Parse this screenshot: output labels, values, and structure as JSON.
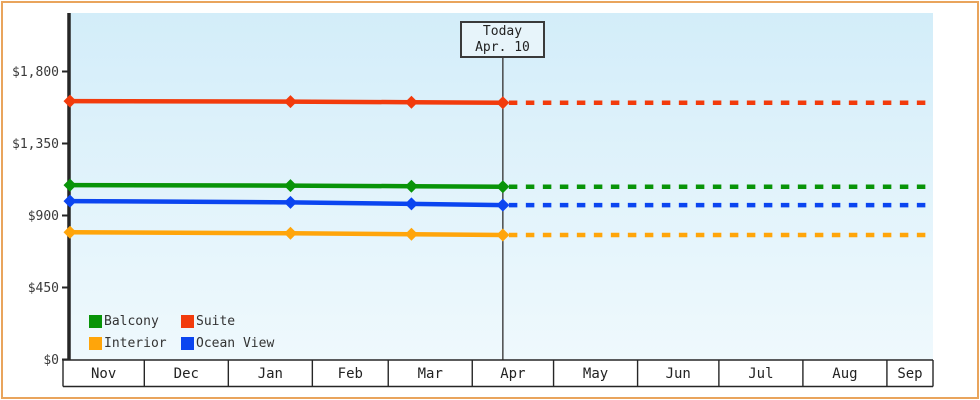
{
  "page": {
    "border_color": "#e9a45c",
    "background_color": "#ffffff",
    "plot_gradient_top": "#d3edf9",
    "plot_gradient_bottom": "#eff9fd"
  },
  "legend": {
    "items": [
      {
        "label": "Balcony",
        "color": "#089408"
      },
      {
        "label": "Suite",
        "color": "#f23b0c"
      },
      {
        "label": "Interior",
        "color": "#ffa50a"
      },
      {
        "label": "Ocean View",
        "color": "#0b45f0"
      }
    ]
  },
  "chart_data": {
    "type": "line",
    "title": "",
    "x_axis": {
      "month_labels": [
        "Nov",
        "Dec",
        "Jan",
        "Feb",
        "Mar",
        "Apr",
        "May",
        "Jun",
        "Jul",
        "Aug",
        "Sep"
      ],
      "days_per_month": [
        30,
        31,
        31,
        28,
        31,
        30,
        31,
        30,
        31,
        31,
        17
      ]
    },
    "y_axis": {
      "tick_labels": [
        "$1,800",
        "$1,350",
        "$900",
        "$450",
        "$0"
      ],
      "tick_values": [
        1800,
        1350,
        900,
        450,
        0
      ],
      "range": [
        0,
        2160
      ]
    },
    "today": {
      "line1": "Today",
      "line2": "Apr. 10",
      "day_offset": 161
    },
    "series": [
      {
        "name": "Suite",
        "color": "#f23b0c",
        "points": [
          [
            0,
            1615
          ],
          [
            82,
            1612
          ],
          [
            127,
            1608
          ],
          [
            161,
            1605
          ]
        ]
      },
      {
        "name": "Balcony",
        "color": "#089408",
        "points": [
          [
            0,
            1090
          ],
          [
            82,
            1087
          ],
          [
            127,
            1083
          ],
          [
            161,
            1080
          ]
        ]
      },
      {
        "name": "Ocean View",
        "color": "#0b45f0",
        "points": [
          [
            0,
            990
          ],
          [
            82,
            982
          ],
          [
            127,
            973
          ],
          [
            161,
            965
          ]
        ]
      },
      {
        "name": "Interior",
        "color": "#ffa50a",
        "points": [
          [
            0,
            795
          ],
          [
            82,
            789
          ],
          [
            127,
            783
          ],
          [
            161,
            778
          ]
        ]
      }
    ],
    "projection": "dotted continuation of each series at its latest price from today to right edge",
    "grid": false,
    "legend_position": "bottom-left inside plot"
  }
}
